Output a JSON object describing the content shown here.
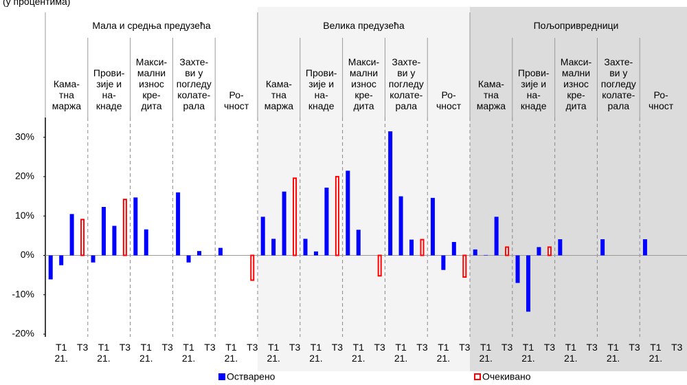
{
  "chart_data": {
    "type": "bar",
    "subtitle": "(у процентима)",
    "groups": [
      {
        "name": "Мала и средња предузећа",
        "subgroups": [
          "Кама-\nтна\nмаржа",
          "Прови-\nзије и\nна-\nкнаде",
          "Макси-\nмални\nизнос\nкре-\nдита",
          "Захте-\nви у\nпогледу\nколате-\nрала",
          "Ро-\nчност"
        ]
      },
      {
        "name": "Велика предузећа",
        "subgroups": [
          "Кама-\nтна\nмаржа",
          "Прови-\nзије и\nна-\nкнаде",
          "Макси-\nмални\nизнос\nкре-\nдита",
          "Захте-\nви у\nпогледу\nколате-\nрала",
          "Ро-\nчност"
        ]
      },
      {
        "name": "Пољопривредници",
        "subgroups": [
          "Кама-\nтна\nмаржа",
          "Прови-\nзије и\nна-\nкнаде",
          "Макси-\nмални\nизнос\nкре-\nдита",
          "Захте-\nви у\nпогледу\nколате-\nрала",
          "Ро-\nчност"
        ]
      }
    ],
    "categories": [
      null,
      "Т1\n21.",
      null,
      "Т3",
      null,
      "Т1\n21.",
      null,
      "Т3",
      null,
      "Т1\n21.",
      null,
      "Т3",
      null,
      "Т1\n21.",
      null,
      "Т3",
      null,
      "Т1\n21.",
      null,
      "Т3",
      null,
      "Т1\n21.",
      null,
      "Т3",
      null,
      "Т1\n21.",
      null,
      "Т3",
      null,
      "Т1\n21.",
      null,
      "Т3",
      null,
      "Т1\n21.",
      null,
      "Т3",
      null,
      "Т1\n21.",
      null,
      "Т3",
      null,
      "Т1\n21.",
      null,
      "Т3",
      null,
      "Т1\n21.",
      null,
      "Т3",
      null,
      "Т1\n21.",
      null,
      "Т3",
      null,
      "Т1\n21.",
      null,
      "Т3",
      null,
      "Т1\n21.",
      null,
      "Т3"
    ],
    "series": [
      {
        "name": "Остварено",
        "color": "#0000ff",
        "style": "filled",
        "values": [
          -6.1,
          -2.5,
          10.5,
          null,
          -1.8,
          12.3,
          7.5,
          null,
          14.7,
          6.6,
          null,
          null,
          16,
          -1.8,
          1.1,
          null,
          1.9,
          null,
          null,
          null,
          9.8,
          4.2,
          16.2,
          null,
          4.2,
          1.0,
          17.2,
          null,
          21.5,
          6.5,
          null,
          null,
          31.5,
          15,
          4,
          null,
          14.6,
          -3.7,
          3.4,
          null,
          1.5,
          0.1,
          9.8,
          null,
          -7,
          -14.3,
          2.1,
          null,
          4.1,
          null,
          null,
          null,
          4.1,
          null,
          null,
          null,
          4.1,
          null,
          null,
          null
        ]
      },
      {
        "name": "Очекивано",
        "color": "#ff0000",
        "style": "hollow",
        "values": [
          null,
          null,
          null,
          9.1,
          null,
          null,
          null,
          14.2,
          null,
          null,
          null,
          null,
          null,
          null,
          null,
          null,
          null,
          null,
          null,
          -6.3,
          null,
          null,
          null,
          19.6,
          null,
          null,
          null,
          20,
          null,
          null,
          null,
          -5.2,
          null,
          null,
          null,
          4,
          null,
          null,
          null,
          -5.5,
          null,
          null,
          null,
          2.1,
          null,
          null,
          null,
          2.1,
          null,
          null,
          null,
          null,
          null,
          null,
          null,
          null,
          null,
          null,
          null,
          null
        ]
      }
    ],
    "ylim": [
      -20,
      35
    ],
    "yticks": [
      {
        "value": -20,
        "label": "-20%"
      },
      {
        "value": -10,
        "label": "-10%"
      },
      {
        "value": 0,
        "label": "0%"
      },
      {
        "value": 10,
        "label": "10%"
      },
      {
        "value": 20,
        "label": "20%"
      },
      {
        "value": 30,
        "label": "30%"
      }
    ],
    "group_backgrounds": [
      "#ffffff",
      "#f4f4f4",
      "#dcdcdc"
    ],
    "legend": "bottom"
  }
}
